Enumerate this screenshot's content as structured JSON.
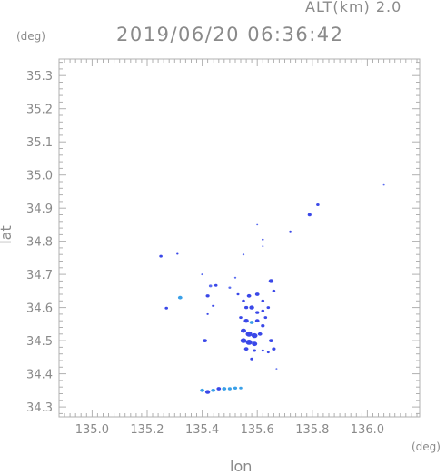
{
  "header": {
    "altitude": "ALT(km) 2.0",
    "timestamp": "2019/06/20 06:36:42"
  },
  "axes": {
    "x_label": "lon",
    "y_label": "lat",
    "x_unit": "(deg)",
    "y_unit": "(deg)",
    "x_range": [
      134.88,
      136.19
    ],
    "y_range": [
      34.27,
      35.35
    ],
    "x_ticks": [
      "135.0",
      "135.2",
      "135.4",
      "135.6",
      "135.8",
      "136.0"
    ],
    "y_ticks": [
      "34.3",
      "34.4",
      "34.5",
      "34.6",
      "34.7",
      "34.8",
      "34.9",
      "35.0",
      "35.1",
      "35.2",
      "35.3"
    ]
  },
  "colors": {
    "echo_strong": "#3a48e8",
    "echo_medium": "#5a6cf0",
    "echo_light": "#3aa0e8",
    "frame": "#b0b0b0"
  },
  "echoes": [
    {
      "lon": 135.25,
      "lat": 34.755,
      "size": 0.006,
      "level": "strong"
    },
    {
      "lon": 135.31,
      "lat": 34.762,
      "size": 0.004,
      "level": "strong"
    },
    {
      "lon": 135.32,
      "lat": 34.63,
      "size": 0.008,
      "level": "light"
    },
    {
      "lon": 135.27,
      "lat": 34.598,
      "size": 0.006,
      "level": "strong"
    },
    {
      "lon": 135.4,
      "lat": 34.7,
      "size": 0.004,
      "level": "medium"
    },
    {
      "lon": 135.43,
      "lat": 34.665,
      "size": 0.006,
      "level": "medium"
    },
    {
      "lon": 135.45,
      "lat": 34.667,
      "size": 0.006,
      "level": "strong"
    },
    {
      "lon": 135.42,
      "lat": 34.635,
      "size": 0.007,
      "level": "strong"
    },
    {
      "lon": 135.44,
      "lat": 34.605,
      "size": 0.005,
      "level": "strong"
    },
    {
      "lon": 135.42,
      "lat": 34.58,
      "size": 0.004,
      "level": "strong"
    },
    {
      "lon": 135.41,
      "lat": 34.5,
      "size": 0.008,
      "level": "strong"
    },
    {
      "lon": 135.5,
      "lat": 34.66,
      "size": 0.005,
      "level": "medium"
    },
    {
      "lon": 135.52,
      "lat": 34.69,
      "size": 0.004,
      "level": "medium"
    },
    {
      "lon": 135.55,
      "lat": 34.76,
      "size": 0.004,
      "level": "medium"
    },
    {
      "lon": 135.53,
      "lat": 34.64,
      "size": 0.005,
      "level": "strong"
    },
    {
      "lon": 135.55,
      "lat": 34.62,
      "size": 0.006,
      "level": "strong"
    },
    {
      "lon": 135.57,
      "lat": 34.635,
      "size": 0.008,
      "level": "strong"
    },
    {
      "lon": 135.6,
      "lat": 34.64,
      "size": 0.008,
      "level": "strong"
    },
    {
      "lon": 135.62,
      "lat": 34.62,
      "size": 0.006,
      "level": "strong"
    },
    {
      "lon": 135.56,
      "lat": 34.6,
      "size": 0.007,
      "level": "strong"
    },
    {
      "lon": 135.58,
      "lat": 34.6,
      "size": 0.009,
      "level": "strong"
    },
    {
      "lon": 135.6,
      "lat": 34.585,
      "size": 0.007,
      "level": "strong"
    },
    {
      "lon": 135.62,
      "lat": 34.59,
      "size": 0.006,
      "level": "strong"
    },
    {
      "lon": 135.64,
      "lat": 34.6,
      "size": 0.006,
      "level": "strong"
    },
    {
      "lon": 135.65,
      "lat": 34.68,
      "size": 0.009,
      "level": "strong"
    },
    {
      "lon": 135.66,
      "lat": 34.65,
      "size": 0.006,
      "level": "strong"
    },
    {
      "lon": 135.63,
      "lat": 34.57,
      "size": 0.006,
      "level": "strong"
    },
    {
      "lon": 135.54,
      "lat": 34.57,
      "size": 0.006,
      "level": "strong"
    },
    {
      "lon": 135.56,
      "lat": 34.56,
      "size": 0.009,
      "level": "strong"
    },
    {
      "lon": 135.58,
      "lat": 34.555,
      "size": 0.008,
      "level": "light"
    },
    {
      "lon": 135.6,
      "lat": 34.56,
      "size": 0.008,
      "level": "strong"
    },
    {
      "lon": 135.62,
      "lat": 34.545,
      "size": 0.007,
      "level": "strong"
    },
    {
      "lon": 135.55,
      "lat": 34.53,
      "size": 0.01,
      "level": "strong"
    },
    {
      "lon": 135.57,
      "lat": 34.52,
      "size": 0.012,
      "level": "strong"
    },
    {
      "lon": 135.59,
      "lat": 34.515,
      "size": 0.011,
      "level": "strong"
    },
    {
      "lon": 135.61,
      "lat": 34.52,
      "size": 0.008,
      "level": "strong"
    },
    {
      "lon": 135.55,
      "lat": 34.5,
      "size": 0.011,
      "level": "strong"
    },
    {
      "lon": 135.57,
      "lat": 34.495,
      "size": 0.012,
      "level": "strong"
    },
    {
      "lon": 135.59,
      "lat": 34.49,
      "size": 0.01,
      "level": "strong"
    },
    {
      "lon": 135.56,
      "lat": 34.475,
      "size": 0.008,
      "level": "strong"
    },
    {
      "lon": 135.59,
      "lat": 34.47,
      "size": 0.006,
      "level": "strong"
    },
    {
      "lon": 135.62,
      "lat": 34.47,
      "size": 0.005,
      "level": "strong"
    },
    {
      "lon": 135.65,
      "lat": 34.5,
      "size": 0.008,
      "level": "strong"
    },
    {
      "lon": 135.66,
      "lat": 34.475,
      "size": 0.007,
      "level": "strong"
    },
    {
      "lon": 135.64,
      "lat": 34.465,
      "size": 0.005,
      "level": "strong"
    },
    {
      "lon": 135.58,
      "lat": 34.445,
      "size": 0.006,
      "level": "strong"
    },
    {
      "lon": 135.6,
      "lat": 34.85,
      "size": 0.003,
      "level": "medium"
    },
    {
      "lon": 135.62,
      "lat": 34.805,
      "size": 0.004,
      "level": "strong"
    },
    {
      "lon": 135.62,
      "lat": 34.785,
      "size": 0.003,
      "level": "medium"
    },
    {
      "lon": 135.72,
      "lat": 34.83,
      "size": 0.004,
      "level": "strong"
    },
    {
      "lon": 135.79,
      "lat": 34.88,
      "size": 0.007,
      "level": "strong"
    },
    {
      "lon": 135.82,
      "lat": 34.91,
      "size": 0.006,
      "level": "strong"
    },
    {
      "lon": 136.06,
      "lat": 34.97,
      "size": 0.002,
      "level": "medium"
    },
    {
      "lon": 135.67,
      "lat": 34.415,
      "size": 0.003,
      "level": "medium"
    },
    {
      "lon": 135.4,
      "lat": 34.35,
      "size": 0.008,
      "level": "light"
    },
    {
      "lon": 135.42,
      "lat": 34.345,
      "size": 0.009,
      "level": "strong"
    },
    {
      "lon": 135.44,
      "lat": 34.35,
      "size": 0.008,
      "level": "light"
    },
    {
      "lon": 135.46,
      "lat": 34.355,
      "size": 0.008,
      "level": "strong"
    },
    {
      "lon": 135.48,
      "lat": 34.355,
      "size": 0.008,
      "level": "light"
    },
    {
      "lon": 135.5,
      "lat": 34.355,
      "size": 0.007,
      "level": "light"
    },
    {
      "lon": 135.52,
      "lat": 34.357,
      "size": 0.007,
      "level": "light"
    },
    {
      "lon": 135.54,
      "lat": 34.357,
      "size": 0.006,
      "level": "light"
    }
  ]
}
